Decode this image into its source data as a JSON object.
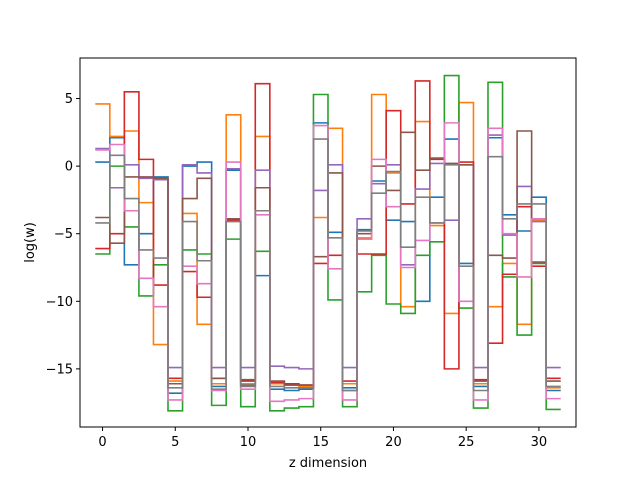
{
  "chart_data": {
    "type": "line",
    "drawstyle": "steps-mid",
    "xlabel": "z dimension",
    "ylabel": "log(w)",
    "xlim": [
      -1.55,
      32.55
    ],
    "ylim": [
      -19.3,
      8.0
    ],
    "xticks": [
      0,
      5,
      10,
      15,
      20,
      25,
      30
    ],
    "yticks": [
      -15,
      -10,
      -5,
      0,
      5
    ],
    "ytick_labels": [
      "−15",
      "−10",
      "−5",
      "0",
      "5"
    ],
    "grid": false,
    "x": [
      0,
      1,
      2,
      3,
      4,
      5,
      6,
      7,
      8,
      9,
      10,
      11,
      12,
      13,
      14,
      15,
      16,
      17,
      18,
      19,
      20,
      21,
      22,
      23,
      24,
      25,
      26,
      27,
      28,
      29,
      30,
      31
    ],
    "series": [
      {
        "color": "#1f77b4",
        "values": [
          0.3,
          2.1,
          -7.3,
          -5.0,
          -0.8,
          -16.8,
          0.0,
          0.3,
          -16.3,
          -0.3,
          -16.2,
          -8.1,
          -16.5,
          -16.6,
          -16.5,
          3.2,
          -4.9,
          -16.4,
          -4.7,
          -1.1,
          -4.0,
          -4.1,
          -10.0,
          -2.3,
          2.0,
          -7.2,
          -16.3,
          2.1,
          -3.6,
          -4.8,
          -2.3,
          -16.6
        ]
      },
      {
        "color": "#ff7f0e",
        "values": [
          4.6,
          2.2,
          2.6,
          -2.7,
          -13.2,
          -15.9,
          -3.5,
          -11.7,
          -16.1,
          3.8,
          -16.1,
          2.2,
          -16.1,
          -16.2,
          -16.3,
          -3.8,
          2.8,
          -16.1,
          -5.4,
          5.3,
          -0.5,
          -10.4,
          3.3,
          -4.4,
          -10.9,
          4.7,
          -16.1,
          -10.4,
          -7.2,
          -11.7,
          -4.0,
          -16.4
        ]
      },
      {
        "color": "#2ca02c",
        "values": [
          -6.5,
          0.0,
          -4.5,
          -9.6,
          -7.3,
          -18.1,
          -6.2,
          -6.5,
          -17.7,
          -5.4,
          -17.8,
          -6.3,
          -18.1,
          -17.9,
          -17.8,
          5.3,
          -9.9,
          -17.8,
          -9.3,
          -6.6,
          -10.2,
          -10.9,
          -6.6,
          -5.6,
          6.7,
          -10.5,
          -17.9,
          6.2,
          -8.2,
          -12.5,
          -7.2,
          -18.0
        ]
      },
      {
        "color": "#d62728",
        "values": [
          -6.1,
          -5.0,
          5.5,
          0.5,
          -8.8,
          -15.7,
          -7.8,
          -9.7,
          -15.7,
          -4.0,
          -15.9,
          6.1,
          -16.0,
          -16.1,
          -16.2,
          -7.2,
          -6.6,
          -15.9,
          -6.5,
          -6.5,
          4.1,
          -2.8,
          6.3,
          0.5,
          -15.0,
          0.3,
          -15.8,
          -13.1,
          -8.0,
          -3.0,
          -7.4,
          -15.7
        ]
      },
      {
        "color": "#9467bd",
        "values": [
          1.3,
          -1.6,
          0.1,
          -0.9,
          -1.0,
          -14.9,
          0.1,
          -0.5,
          -14.9,
          -0.2,
          -14.9,
          -0.3,
          -14.8,
          -14.9,
          -15.0,
          -1.8,
          0.1,
          -14.9,
          -3.9,
          -1.3,
          0.1,
          -7.3,
          -1.7,
          0.2,
          -4.0,
          0.1,
          -14.9,
          2.3,
          -5.1,
          -1.5,
          -4.1,
          -14.9
        ]
      },
      {
        "color": "#8c564b",
        "values": [
          -3.8,
          -5.7,
          -0.8,
          -0.8,
          -0.9,
          -16.1,
          -2.4,
          -0.9,
          -15.7,
          -3.9,
          -15.8,
          -1.6,
          -15.9,
          -16.2,
          -16.2,
          -6.7,
          -0.5,
          -16.6,
          -5.0,
          0.0,
          -1.8,
          2.5,
          -0.3,
          0.6,
          0.2,
          0.1,
          -15.9,
          -6.6,
          -6.8,
          2.6,
          -7.1,
          -15.9
        ]
      },
      {
        "color": "#e377c2",
        "values": [
          1.2,
          1.6,
          -3.3,
          -8.3,
          -10.4,
          -17.3,
          -7.4,
          -8.7,
          -16.6,
          0.3,
          -16.5,
          -3.6,
          -17.4,
          -17.3,
          -17.2,
          3.0,
          -7.6,
          -17.3,
          -5.3,
          0.5,
          -3.0,
          -7.5,
          -5.5,
          -4.2,
          3.2,
          -10.0,
          -17.3,
          2.8,
          -5.0,
          -8.2,
          -3.9,
          -17.2
        ]
      },
      {
        "color": "#7f7f7f",
        "values": [
          -4.2,
          0.8,
          -2.4,
          -6.2,
          -6.8,
          -16.4,
          -4.1,
          -7.0,
          -16.5,
          -4.1,
          -16.3,
          -3.3,
          -16.3,
          -16.4,
          -16.4,
          2.0,
          -5.3,
          -16.6,
          -4.8,
          -2.0,
          -0.4,
          -6.0,
          -2.3,
          -4.2,
          0.1,
          -7.4,
          -16.6,
          0.7,
          -3.9,
          -2.8,
          -2.8,
          -16.3
        ]
      }
    ]
  }
}
